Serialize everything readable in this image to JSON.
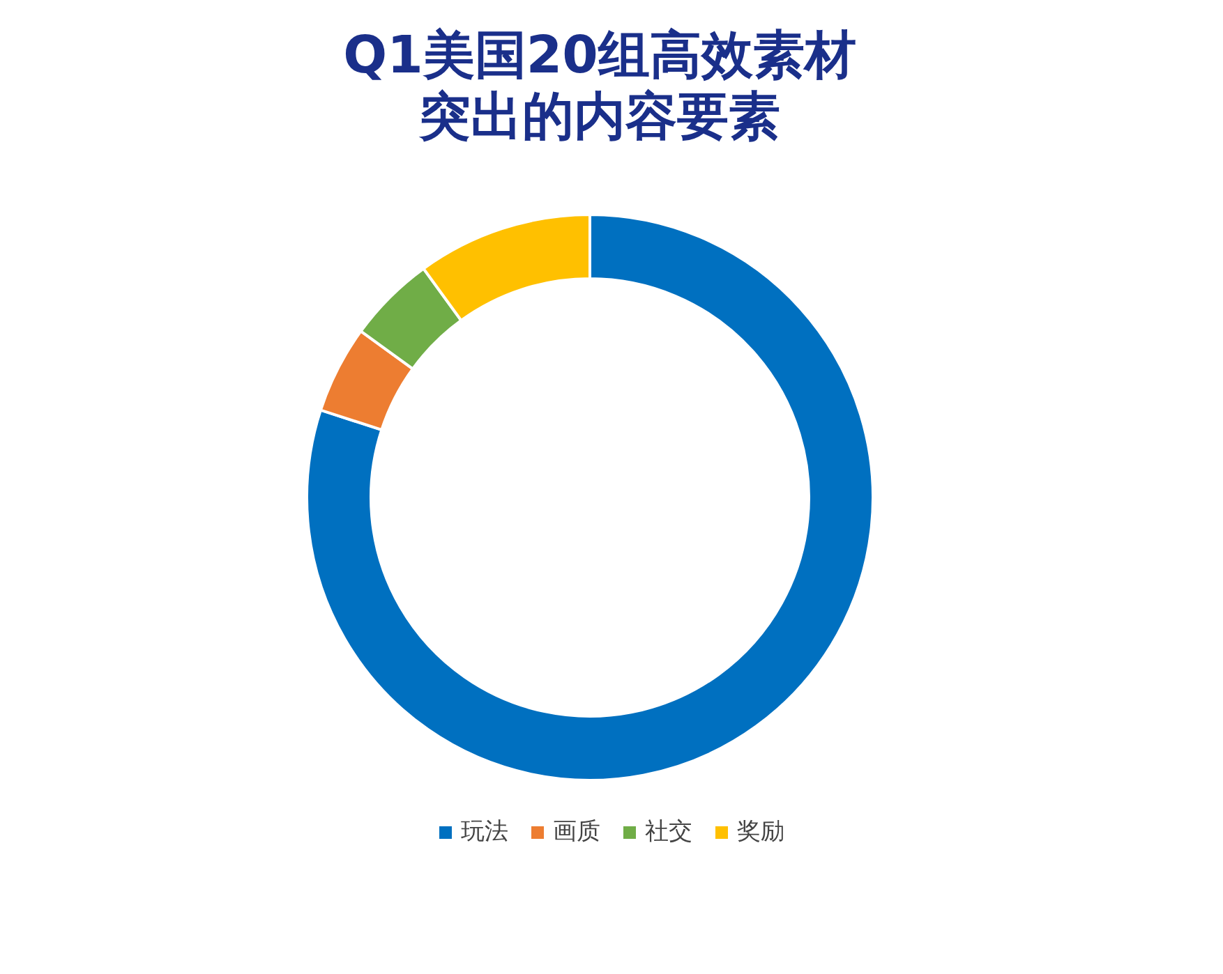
{
  "chart_data": {
    "type": "donut",
    "title": "Q1美国20组高效素材突出的内容要素",
    "categories": [
      "玩法",
      "画质",
      "社交",
      "奖励"
    ],
    "values": [
      80,
      5,
      5,
      10
    ],
    "colors": [
      "#0070c0",
      "#ed7d31",
      "#70ad47",
      "#ffc000"
    ],
    "legend": "bottom"
  }
}
